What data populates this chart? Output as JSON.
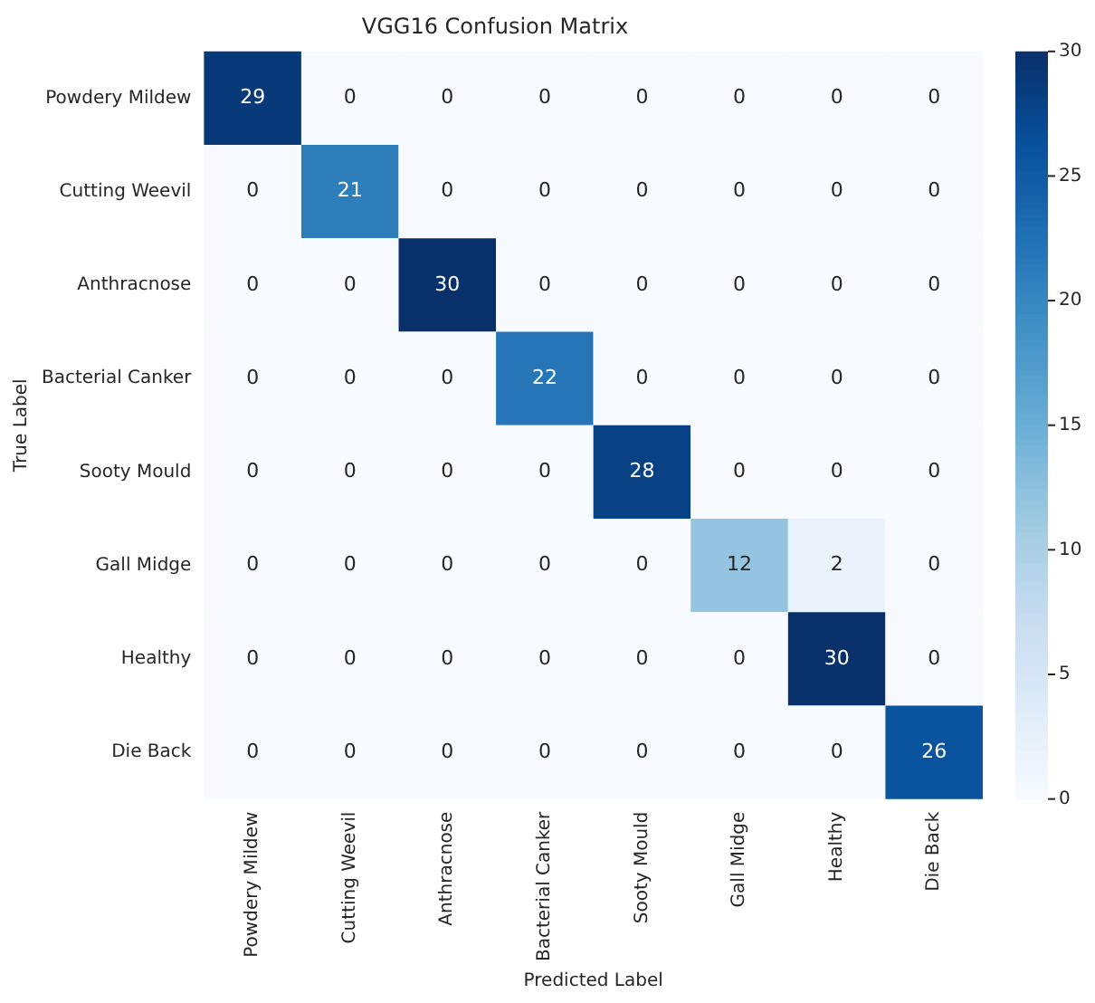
{
  "chart_data": {
    "type": "heatmap",
    "title": "VGG16 Confusion Matrix",
    "xlabel": "Predicted Label",
    "ylabel": "True Label",
    "categories": [
      "Powdery Mildew",
      "Cutting Weevil",
      "Anthracnose",
      "Bacterial Canker",
      "Sooty Mould",
      "Gall Midge",
      "Healthy",
      "Die Back"
    ],
    "y_categories": [
      "Powdery Mildew",
      "Cutting Weevil",
      "Anthracnose",
      "Bacterial Canker",
      "Sooty Mould",
      "Gall Midge",
      "Healthy",
      "Die Back"
    ],
    "cells": [
      [
        29,
        0,
        0,
        0,
        0,
        0,
        0,
        0
      ],
      [
        0,
        21,
        0,
        0,
        0,
        0,
        0,
        0
      ],
      [
        0,
        0,
        30,
        0,
        0,
        0,
        0,
        0
      ],
      [
        0,
        0,
        0,
        22,
        0,
        0,
        0,
        0
      ],
      [
        0,
        0,
        0,
        0,
        28,
        0,
        0,
        0
      ],
      [
        0,
        0,
        0,
        0,
        0,
        12,
        2,
        0
      ],
      [
        0,
        0,
        0,
        0,
        0,
        0,
        30,
        0
      ],
      [
        0,
        0,
        0,
        0,
        0,
        0,
        0,
        26
      ]
    ],
    "clim": [
      0,
      30
    ],
    "cticks": [
      0,
      5,
      10,
      15,
      20,
      25,
      30
    ],
    "data_labels": true
  }
}
